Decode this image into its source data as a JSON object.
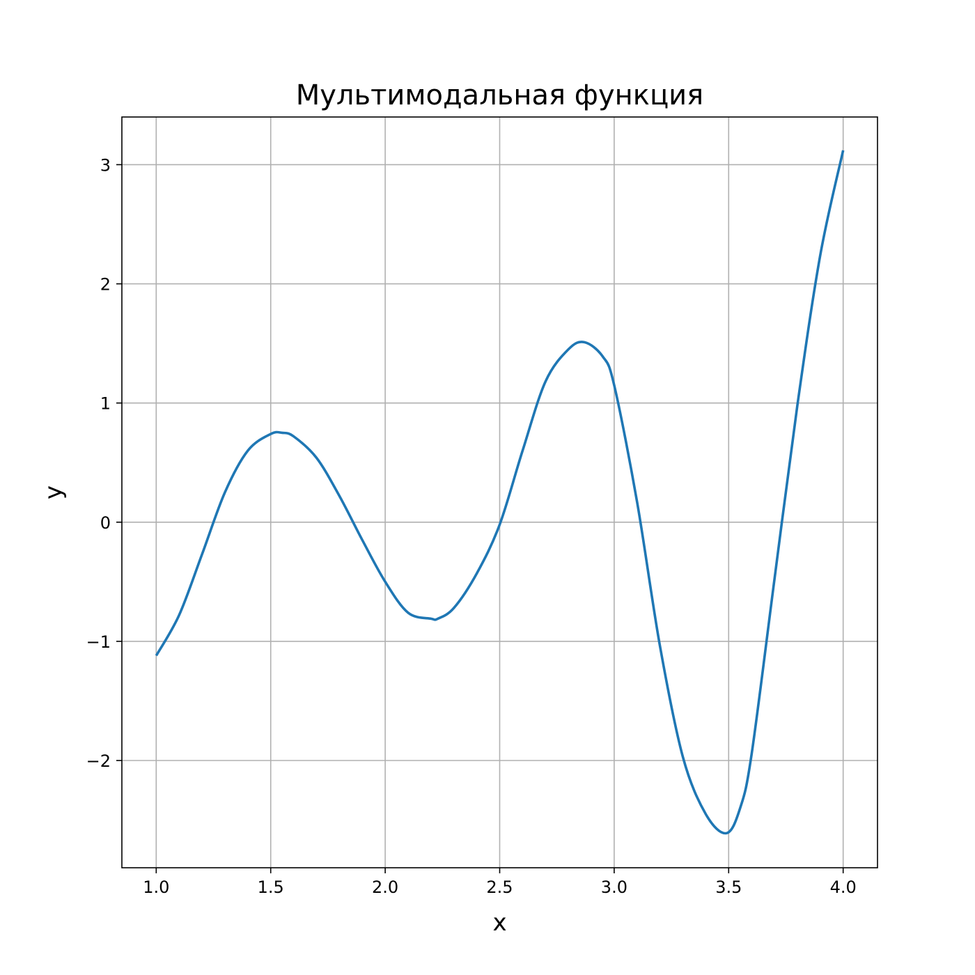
{
  "chart_data": {
    "type": "line",
    "title": "Мультимодальная функция",
    "xlabel": "x",
    "ylabel": "y",
    "xlim": [
      0.85,
      4.15
    ],
    "ylim": [
      -2.9,
      3.4
    ],
    "xticks": [
      1.0,
      1.5,
      2.0,
      2.5,
      3.0,
      3.5,
      4.0
    ],
    "xtick_labels": [
      "1.0",
      "1.5",
      "2.0",
      "2.5",
      "3.0",
      "3.5",
      "4.0"
    ],
    "yticks": [
      -2,
      -1,
      0,
      1,
      2,
      3
    ],
    "ytick_labels": [
      "−2",
      "−1",
      "0",
      "1",
      "2",
      "3"
    ],
    "grid": true,
    "colors": {
      "line": "#1f77b4",
      "grid": "#b0b0b0",
      "frame": "#000000"
    },
    "series": [
      {
        "x": [
          1.0,
          1.1,
          1.2,
          1.3,
          1.4,
          1.5,
          1.55,
          1.6,
          1.7,
          1.8,
          1.9,
          2.0,
          2.1,
          2.2,
          2.23,
          2.3,
          2.4,
          2.5,
          2.6,
          2.7,
          2.8,
          2.87,
          2.95,
          3.0,
          3.1,
          3.2,
          3.3,
          3.4,
          3.49,
          3.55,
          3.6,
          3.7,
          3.8,
          3.9,
          4.0
        ],
        "y": [
          -1.12,
          -0.78,
          -0.27,
          0.25,
          0.6,
          0.74,
          0.75,
          0.72,
          0.54,
          0.22,
          -0.15,
          -0.5,
          -0.76,
          -0.81,
          -0.81,
          -0.72,
          -0.43,
          -0.02,
          0.6,
          1.18,
          1.45,
          1.51,
          1.39,
          1.15,
          0.17,
          -1.04,
          -1.97,
          -2.45,
          -2.61,
          -2.4,
          -1.95,
          -0.48,
          0.98,
          2.24,
          3.12
        ]
      }
    ]
  }
}
